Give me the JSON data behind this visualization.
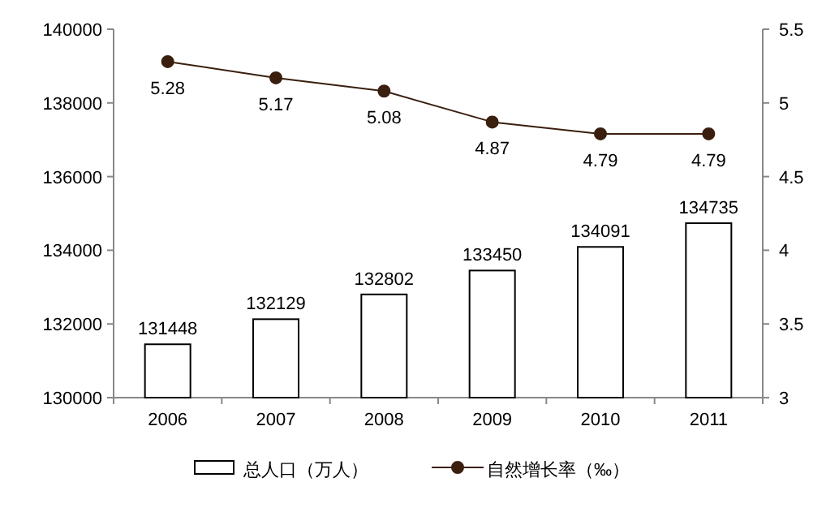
{
  "chart_data": {
    "type": "bar",
    "categories": [
      "2006",
      "2007",
      "2008",
      "2009",
      "2010",
      "2011"
    ],
    "series": [
      {
        "name": "总人口（万人）",
        "color": "#ffffff",
        "values": [
          131448,
          132129,
          132802,
          133450,
          134091,
          134735
        ]
      },
      {
        "name": "自然增长率（‰）",
        "type": "line",
        "axis": "y2",
        "color": "#3a1f0f",
        "values": [
          5.28,
          5.17,
          5.08,
          4.87,
          4.79,
          4.79
        ]
      }
    ],
    "ylim": [
      130000,
      140000
    ],
    "yticks": [
      130000,
      132000,
      134000,
      136000,
      138000,
      140000
    ],
    "y2lim": [
      3,
      5.5
    ],
    "y2ticks": [
      3,
      3.5,
      4,
      4.5,
      5,
      5.5
    ],
    "data_labels": true,
    "legend": "bottom",
    "marker": "circle"
  }
}
